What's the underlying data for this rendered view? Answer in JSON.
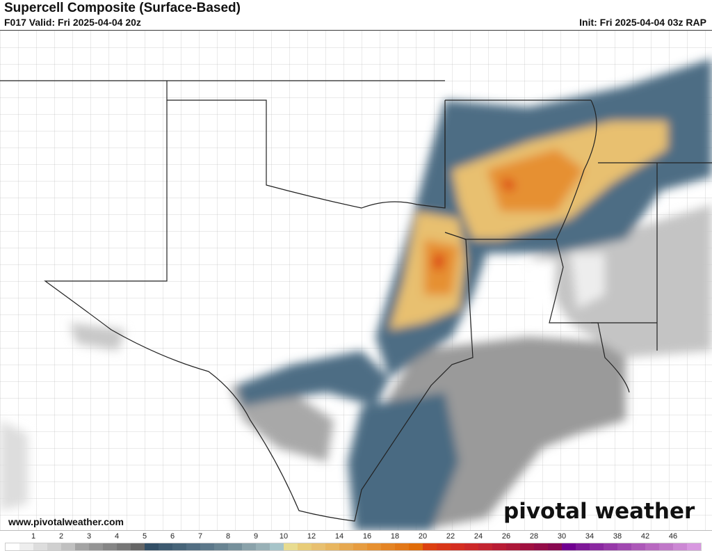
{
  "header": {
    "title": "Supercell Composite (Surface-Based)",
    "valid": "F017 Valid: Fri 2025-04-04 20z",
    "init": "Init: Fri 2025-04-04 03z RAP"
  },
  "footer": {
    "website": "www.pivotalweather.com",
    "logo": "pivotal weather"
  },
  "colorbar": {
    "labels": [
      "1",
      "2",
      "3",
      "4",
      "5",
      "6",
      "7",
      "8",
      "9",
      "10",
      "12",
      "14",
      "16",
      "18",
      "20",
      "22",
      "24",
      "26",
      "28",
      "30",
      "34",
      "38",
      "42",
      "46"
    ],
    "colors": [
      "#ffffff",
      "#eeeeee",
      "#dddddd",
      "#d0d0d0",
      "#c0c0c0",
      "#a3a3a3",
      "#949494",
      "#858585",
      "#767676",
      "#666666",
      "#334f66",
      "#3d5a70",
      "#476478",
      "#526e82",
      "#5c788a",
      "#698492",
      "#76909b",
      "#8aa2aa",
      "#98b0b6",
      "#a6c4c9",
      "#e8dc90",
      "#e8cc78",
      "#e8c070",
      "#e8b660",
      "#e6a850",
      "#e69c40",
      "#e69030",
      "#e48424",
      "#e27818",
      "#e06c08",
      "#dc4010",
      "#d83618",
      "#d42e20",
      "#cc2828",
      "#c22430",
      "#b81c34",
      "#ac1838",
      "#a01040",
      "#940c48",
      "#880850",
      "#700090",
      "#7e1898",
      "#8a28a0",
      "#9638a8",
      "#a048b0",
      "#ac58b8",
      "#b868c0",
      "#c078c8",
      "#cc88d4",
      "#d898e0"
    ]
  }
}
